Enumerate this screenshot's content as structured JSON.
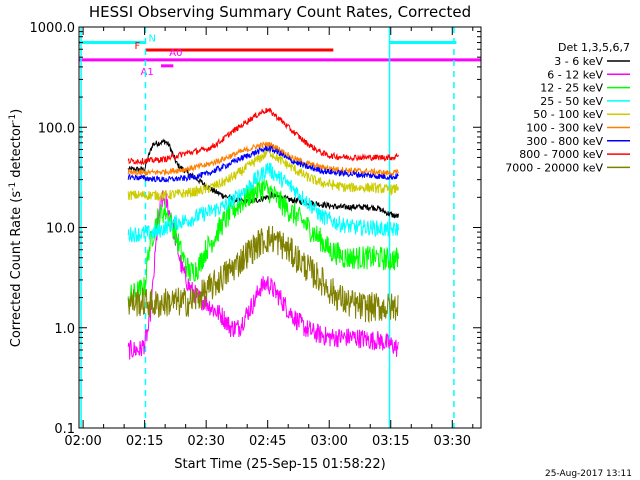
{
  "chart_data": {
    "type": "line",
    "title": "HESSI Observing Summary Count Rates, Corrected",
    "xlabel": "Start Time (25-Sep-15 01:58:22)",
    "ylabel": "Corrected Count Rate (s⁻¹ detector⁻¹)",
    "ylabel_prefix": "Corrected Count Rate (s",
    "ylabel_mid": " detector",
    "ylabel_suffix": ")",
    "ylabel_exp": "-1",
    "yscale": "log",
    "xlim": [
      119,
      217
    ],
    "ylim": [
      0.1,
      1000
    ],
    "xticks": [
      {
        "value": 120,
        "label": "02:00"
      },
      {
        "value": 135,
        "label": "02:15"
      },
      {
        "value": 150,
        "label": "02:30"
      },
      {
        "value": 165,
        "label": "02:45"
      },
      {
        "value": 180,
        "label": "03:00"
      },
      {
        "value": 195,
        "label": "03:15"
      },
      {
        "value": 210,
        "label": "03:30"
      }
    ],
    "yticks": [
      {
        "value": 0.1,
        "label": "0.1"
      },
      {
        "value": 1,
        "label": "1.0"
      },
      {
        "value": 10,
        "label": "10.0"
      },
      {
        "value": 100,
        "label": "100.0"
      },
      {
        "value": 1000,
        "label": "1000.0"
      }
    ],
    "legend_title": "Det 1,3,5,6,7",
    "legend_position": "right",
    "series": [
      {
        "name": "3 - 6 keV",
        "color": "#000000",
        "x": [
          131,
          134,
          135,
          136,
          137,
          140,
          141,
          142,
          143,
          146,
          148,
          150,
          152,
          154,
          157,
          160,
          163,
          166,
          170,
          174,
          178,
          182,
          186,
          190,
          192,
          194,
          196,
          197
        ],
        "y": [
          38,
          38,
          38,
          52,
          68,
          72,
          66,
          52,
          42,
          34,
          30,
          26,
          23,
          21,
          19,
          18,
          19,
          21,
          19,
          18,
          17,
          16,
          16,
          16,
          15.5,
          14,
          13,
          13
        ]
      },
      {
        "name": "6 - 12 keV",
        "color": "#ff00ff",
        "x": [
          131,
          134,
          135,
          136,
          137,
          138,
          139,
          140,
          142,
          144,
          146,
          148,
          150,
          152,
          154,
          156,
          158,
          160,
          162,
          163,
          165,
          166,
          168,
          170,
          172,
          174,
          176,
          178,
          180,
          182,
          184,
          186,
          188,
          190,
          192,
          194,
          196,
          197
        ],
        "y": [
          0.6,
          0.6,
          0.7,
          1.0,
          2.5,
          9,
          18,
          20,
          10,
          4,
          2.5,
          2.0,
          1.8,
          1.5,
          1.3,
          1.0,
          1.0,
          1.4,
          1.9,
          2.5,
          2.8,
          2.5,
          2.0,
          1.5,
          1.2,
          1.0,
          0.9,
          0.85,
          0.8,
          0.8,
          0.8,
          0.8,
          0.78,
          0.75,
          0.75,
          0.7,
          0.65,
          0.6
        ]
      },
      {
        "name": "12 - 25 keV",
        "color": "#00ff00",
        "x": [
          131,
          135,
          136,
          138,
          140,
          142,
          144,
          146,
          148,
          150,
          152,
          154,
          156,
          158,
          160,
          162,
          164,
          166,
          168,
          170,
          172,
          174,
          176,
          178,
          180,
          182,
          184,
          186,
          188,
          190,
          192,
          194,
          196,
          197
        ],
        "y": [
          2.0,
          2.5,
          6,
          12,
          15,
          10,
          5.5,
          3.5,
          4,
          6,
          8,
          11,
          14,
          17,
          20,
          23,
          25,
          22,
          18,
          15,
          13,
          11,
          9,
          7.5,
          6,
          5.5,
          5,
          5,
          5,
          5,
          5,
          4.8,
          4.8,
          5
        ]
      },
      {
        "name": "25 - 50 keV",
        "color": "#00ffff",
        "x": [
          131,
          135,
          138,
          140,
          142,
          144,
          146,
          148,
          150,
          152,
          154,
          156,
          158,
          160,
          162,
          164,
          165,
          166,
          168,
          170,
          172,
          174,
          176,
          178,
          180,
          182,
          184,
          186,
          188,
          190,
          192,
          194,
          196,
          197
        ],
        "y": [
          8.5,
          8.7,
          9,
          10,
          11,
          11.5,
          12,
          13,
          14,
          15,
          16,
          18,
          21,
          25,
          30,
          35,
          40,
          36,
          31,
          27,
          23,
          19,
          16,
          13,
          12,
          11,
          10.5,
          10,
          10,
          10,
          9.8,
          9.5,
          9.5,
          10
        ]
      },
      {
        "name": "50 - 100 keV",
        "color": "#cccc00",
        "x": [
          131,
          135,
          140,
          145,
          148,
          150,
          152,
          154,
          156,
          158,
          160,
          162,
          164,
          165,
          166,
          168,
          170,
          172,
          174,
          176,
          178,
          180,
          182,
          184,
          186,
          188,
          190,
          192,
          194,
          196,
          197
        ],
        "y": [
          21,
          21,
          21,
          22,
          23,
          24,
          26,
          28,
          31,
          35,
          40,
          46,
          52,
          58,
          55,
          47,
          42,
          37,
          33,
          30,
          28,
          27,
          26,
          25,
          25,
          25,
          25,
          24.5,
          24,
          24,
          26
        ]
      },
      {
        "name": "100 - 300 keV",
        "color": "#ff8000",
        "x": [
          131,
          135,
          140,
          145,
          150,
          154,
          158,
          162,
          165,
          166,
          168,
          170,
          174,
          178,
          182,
          186,
          190,
          194,
          196,
          197
        ],
        "y": [
          35,
          35,
          36,
          38,
          42,
          48,
          56,
          64,
          68,
          66,
          60,
          52,
          44,
          40,
          38,
          37,
          36,
          35,
          35,
          36
        ]
      },
      {
        "name": "300 - 800 keV",
        "color": "#0000ff",
        "x": [
          131,
          135,
          140,
          145,
          150,
          154,
          158,
          162,
          165,
          166,
          168,
          170,
          174,
          178,
          182,
          186,
          190,
          194,
          196,
          197
        ],
        "y": [
          32,
          31,
          30,
          31,
          34,
          40,
          48,
          56,
          62,
          60,
          55,
          48,
          41,
          37,
          35,
          34,
          33,
          32,
          32,
          33
        ]
      },
      {
        "name": "800 - 7000 keV",
        "color": "#ff0000",
        "x": [
          131,
          135,
          140,
          145,
          148,
          150,
          152,
          154,
          156,
          158,
          160,
          162,
          164,
          165,
          166,
          168,
          170,
          172,
          174,
          176,
          178,
          180,
          182,
          186,
          190,
          194,
          196,
          197
        ],
        "y": [
          46,
          46,
          48,
          55,
          58,
          60,
          66,
          75,
          88,
          100,
          115,
          130,
          145,
          148,
          140,
          120,
          100,
          85,
          72,
          63,
          56,
          52,
          51,
          50,
          50,
          50,
          50,
          55
        ]
      },
      {
        "name": "7000 - 20000 keV",
        "color": "#808000",
        "x": [
          131,
          135,
          138,
          140,
          142,
          144,
          146,
          148,
          150,
          152,
          154,
          156,
          158,
          160,
          162,
          164,
          166,
          168,
          170,
          172,
          174,
          176,
          178,
          180,
          184,
          188,
          192,
          196,
          197
        ],
        "y": [
          1.8,
          1.8,
          1.7,
          1.8,
          1.8,
          1.8,
          1.8,
          2.0,
          2.3,
          2.7,
          3.2,
          3.8,
          4.5,
          5.5,
          6.5,
          7.5,
          7.8,
          7,
          6,
          5,
          4.2,
          3.5,
          3,
          2.4,
          1.8,
          1.6,
          1.6,
          1.6,
          1.8
        ]
      }
    ],
    "vertical_lines": [
      {
        "x": 119.5,
        "color": "#00ffff",
        "style": "solid"
      },
      {
        "x": 135.2,
        "color": "#00ffff",
        "style": "dashed"
      },
      {
        "x": 194.7,
        "color": "#00ffff",
        "style": "solid"
      },
      {
        "x": 210.4,
        "color": "#00ffff",
        "style": "dashed"
      }
    ],
    "flag_bars": [
      {
        "label": "N",
        "color": "#00ffff",
        "segments": [
          [
            119,
            135.2
          ],
          [
            194.7,
            211
          ]
        ],
        "level": 700
      },
      {
        "label": "F",
        "color": "#ff0000",
        "segments": [
          [
            135.2,
            181
          ]
        ],
        "level": 590
      },
      {
        "label": "A0",
        "color": "#ff00ff",
        "segments": [
          [
            119,
            217
          ]
        ],
        "level": 470
      },
      {
        "label": "A1",
        "color": "#ff00ff",
        "segments": [
          [
            139,
            142
          ]
        ],
        "level": 410
      }
    ],
    "timestamp": "25-Aug-2017 13:11"
  }
}
